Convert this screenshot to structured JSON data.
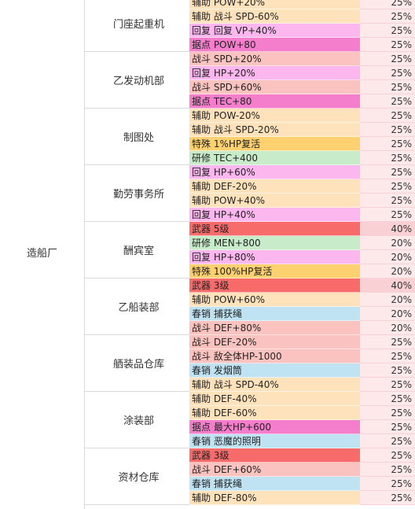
{
  "colors": {
    "辅助": "#fde2bc",
    "战斗": "#fbc3bf",
    "回复": "#fbb7ee",
    "据点": "#f47ecc",
    "特殊": "#fdd070",
    "研修": "#c8ecc9",
    "武器": "#f76b6b",
    "春销": "#bfe3f3"
  },
  "category": "造船厂",
  "facilities": [
    {
      "name": "门座起重机",
      "rows": [
        {
          "type": "辅助",
          "text": "辅助 POW+20%",
          "pct": "25%"
        },
        {
          "type": "辅助",
          "text": "辅助 战斗 SPD-60%",
          "pct": "25%"
        },
        {
          "type": "回复",
          "text": "回复 回复 VP+40%",
          "pct": "25%"
        },
        {
          "type": "据点",
          "text": "据点 POW+80",
          "pct": "25%"
        }
      ]
    },
    {
      "name": "乙发动机部",
      "rows": [
        {
          "type": "战斗",
          "text": "战斗 SPD+20%",
          "pct": "25%"
        },
        {
          "type": "回复",
          "text": "回复 HP+20%",
          "pct": "25%"
        },
        {
          "type": "战斗",
          "text": "战斗 SPD+60%",
          "pct": "25%"
        },
        {
          "type": "据点",
          "text": "据点 TEC+80",
          "pct": "25%"
        }
      ]
    },
    {
      "name": "制图处",
      "rows": [
        {
          "type": "辅助",
          "text": "辅助 POW-20%",
          "pct": "25%"
        },
        {
          "type": "辅助",
          "text": "辅助 战斗 SPD-20%",
          "pct": "25%"
        },
        {
          "type": "特殊",
          "text": "特殊 1%HP复活",
          "pct": "25%"
        },
        {
          "type": "研修",
          "text": "研修 TEC+400",
          "pct": "25%"
        }
      ]
    },
    {
      "name": "勤劳事务所",
      "rows": [
        {
          "type": "回复",
          "text": "回复 HP+60%",
          "pct": "25%"
        },
        {
          "type": "辅助",
          "text": "辅助 DEF-20%",
          "pct": "25%"
        },
        {
          "type": "辅助",
          "text": "辅助 POW+40%",
          "pct": "25%"
        },
        {
          "type": "回复",
          "text": "回复 HP+40%",
          "pct": "25%"
        }
      ]
    },
    {
      "name": "酬宾室",
      "rows": [
        {
          "type": "武器",
          "text": "武器 5级",
          "pct": "40%"
        },
        {
          "type": "研修",
          "text": "研修 MEN+800",
          "pct": "20%"
        },
        {
          "type": "回复",
          "text": "回复 HP+80%",
          "pct": "20%"
        },
        {
          "type": "特殊",
          "text": "特殊 100%HP复活",
          "pct": "20%"
        }
      ]
    },
    {
      "name": "乙船装部",
      "rows": [
        {
          "type": "武器",
          "text": "武器 3级",
          "pct": "40%"
        },
        {
          "type": "辅助",
          "text": "辅助 POW+60%",
          "pct": "20%"
        },
        {
          "type": "春销",
          "text": "春销 捕获绳",
          "pct": "20%"
        },
        {
          "type": "战斗",
          "text": "战斗 DEF+80%",
          "pct": "20%"
        }
      ]
    },
    {
      "name": "舾装品仓库",
      "rows": [
        {
          "type": "战斗",
          "text": "战斗 DEF-20%",
          "pct": "25%"
        },
        {
          "type": "战斗",
          "text": "战斗 敌全体HP-1000",
          "pct": "25%"
        },
        {
          "type": "春销",
          "text": "春销 发烟筒",
          "pct": "25%"
        },
        {
          "type": "辅助",
          "text": "辅助 战斗 SPD-40%",
          "pct": "25%"
        }
      ]
    },
    {
      "name": "涂装部",
      "rows": [
        {
          "type": "辅助",
          "text": "辅助 DEF-40%",
          "pct": "25%"
        },
        {
          "type": "辅助",
          "text": "辅助 DEF-60%",
          "pct": "25%"
        },
        {
          "type": "据点",
          "text": "据点 最大HP+600",
          "pct": "25%"
        },
        {
          "type": "春销",
          "text": "春销 恶魔的照明",
          "pct": "25%"
        }
      ]
    },
    {
      "name": "资材仓库",
      "rows": [
        {
          "type": "武器",
          "text": "武器 3级",
          "pct": "25%"
        },
        {
          "type": "战斗",
          "text": "战斗 DEF+60%",
          "pct": "25%"
        },
        {
          "type": "春销",
          "text": "春销 捕获绳",
          "pct": "25%"
        },
        {
          "type": "辅助",
          "text": "辅助 DEF-80%",
          "pct": "25%"
        }
      ]
    }
  ]
}
